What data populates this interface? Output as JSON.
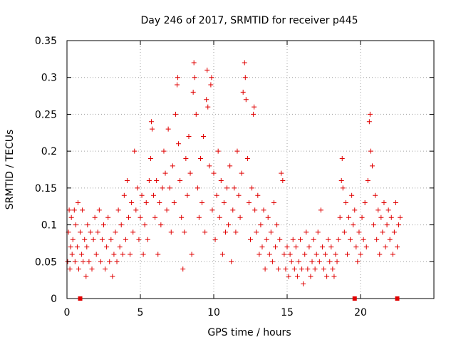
{
  "chart_data": {
    "type": "scatter",
    "title": "Day 246 of 2017, SRMTID for receiver p445",
    "xlabel": "GPS time / hours",
    "ylabel": "SRMTID / TECUs",
    "xlim": [
      0,
      25
    ],
    "ylim": [
      0,
      0.35
    ],
    "xticks": [
      0,
      5,
      10,
      15,
      20
    ],
    "xtick_labels": [
      "0",
      "5",
      "10",
      "15",
      "20"
    ],
    "yticks": [
      0,
      0.05,
      0.1,
      0.15,
      0.2,
      0.25,
      0.3,
      0.35
    ],
    "ytick_labels": [
      "0",
      "0.05",
      "0.1",
      "0.15",
      "0.2",
      "0.25",
      "0.3",
      "0.35"
    ],
    "grid": true,
    "marker": "+",
    "color": "#e00000",
    "axis_markers_x": [
      0.9,
      19.6,
      22.5
    ],
    "series": [
      {
        "name": "SRMTID",
        "points": [
          [
            0.05,
            0.05
          ],
          [
            0.1,
            0.09
          ],
          [
            0.15,
            0.12
          ],
          [
            0.2,
            0.04
          ],
          [
            0.25,
            0.07
          ],
          [
            0.3,
            0.11
          ],
          [
            0.35,
            0.06
          ],
          [
            0.4,
            0.08
          ],
          [
            0.5,
            0.12
          ],
          [
            0.55,
            0.05
          ],
          [
            0.6,
            0.1
          ],
          [
            0.7,
            0.07
          ],
          [
            0.75,
            0.13
          ],
          [
            0.8,
            0.04
          ],
          [
            0.9,
            0.09
          ],
          [
            1.0,
            0.06
          ],
          [
            1.05,
            0.12
          ],
          [
            1.1,
            0.05
          ],
          [
            1.2,
            0.08
          ],
          [
            1.3,
            0.03
          ],
          [
            1.35,
            0.07
          ],
          [
            1.4,
            0.1
          ],
          [
            1.5,
            0.05
          ],
          [
            1.6,
            0.09
          ],
          [
            1.7,
            0.04
          ],
          [
            1.8,
            0.08
          ],
          [
            1.9,
            0.11
          ],
          [
            2.0,
            0.06
          ],
          [
            2.1,
            0.09
          ],
          [
            2.2,
            0.12
          ],
          [
            2.3,
            0.05
          ],
          [
            2.4,
            0.08
          ],
          [
            2.5,
            0.1
          ],
          [
            2.6,
            0.04
          ],
          [
            2.7,
            0.07
          ],
          [
            2.8,
            0.11
          ],
          [
            2.9,
            0.05
          ],
          [
            3.0,
            0.08
          ],
          [
            3.1,
            0.03
          ],
          [
            3.2,
            0.06
          ],
          [
            3.3,
            0.09
          ],
          [
            3.4,
            0.05
          ],
          [
            3.5,
            0.12
          ],
          [
            3.6,
            0.07
          ],
          [
            3.7,
            0.1
          ],
          [
            3.8,
            0.06
          ],
          [
            3.9,
            0.14
          ],
          [
            4.0,
            0.08
          ],
          [
            4.1,
            0.16
          ],
          [
            4.2,
            0.11
          ],
          [
            4.3,
            0.06
          ],
          [
            4.4,
            0.13
          ],
          [
            4.5,
            0.09
          ],
          [
            4.6,
            0.2
          ],
          [
            4.7,
            0.12
          ],
          [
            4.8,
            0.15
          ],
          [
            4.9,
            0.08
          ],
          [
            5.0,
            0.11
          ],
          [
            5.1,
            0.14
          ],
          [
            5.2,
            0.06
          ],
          [
            5.3,
            0.1
          ],
          [
            5.4,
            0.13
          ],
          [
            5.5,
            0.08
          ],
          [
            5.6,
            0.16
          ],
          [
            5.7,
            0.19
          ],
          [
            5.75,
            0.24
          ],
          [
            5.8,
            0.23
          ],
          [
            5.9,
            0.14
          ],
          [
            6.0,
            0.11
          ],
          [
            6.1,
            0.16
          ],
          [
            6.2,
            0.06
          ],
          [
            6.3,
            0.13
          ],
          [
            6.4,
            0.1
          ],
          [
            6.5,
            0.15
          ],
          [
            6.6,
            0.2
          ],
          [
            6.7,
            0.17
          ],
          [
            6.8,
            0.12
          ],
          [
            6.9,
            0.23
          ],
          [
            7.0,
            0.15
          ],
          [
            7.1,
            0.09
          ],
          [
            7.2,
            0.18
          ],
          [
            7.3,
            0.13
          ],
          [
            7.4,
            0.25
          ],
          [
            7.5,
            0.29
          ],
          [
            7.55,
            0.3
          ],
          [
            7.6,
            0.21
          ],
          [
            7.7,
            0.16
          ],
          [
            7.8,
            0.11
          ],
          [
            7.9,
            0.04
          ],
          [
            8.0,
            0.09
          ],
          [
            8.1,
            0.19
          ],
          [
            8.2,
            0.14
          ],
          [
            8.3,
            0.22
          ],
          [
            8.4,
            0.17
          ],
          [
            8.5,
            0.06
          ],
          [
            8.6,
            0.28
          ],
          [
            8.65,
            0.32
          ],
          [
            8.7,
            0.3
          ],
          [
            8.8,
            0.25
          ],
          [
            8.9,
            0.15
          ],
          [
            9.0,
            0.11
          ],
          [
            9.1,
            0.19
          ],
          [
            9.2,
            0.13
          ],
          [
            9.3,
            0.22
          ],
          [
            9.4,
            0.09
          ],
          [
            9.5,
            0.27
          ],
          [
            9.55,
            0.31
          ],
          [
            9.6,
            0.26
          ],
          [
            9.7,
            0.18
          ],
          [
            9.8,
            0.29
          ],
          [
            9.85,
            0.3
          ],
          [
            9.9,
            0.12
          ],
          [
            10.0,
            0.17
          ],
          [
            10.1,
            0.08
          ],
          [
            10.2,
            0.14
          ],
          [
            10.3,
            0.2
          ],
          [
            10.4,
            0.11
          ],
          [
            10.5,
            0.16
          ],
          [
            10.6,
            0.06
          ],
          [
            10.7,
            0.13
          ],
          [
            10.8,
            0.09
          ],
          [
            10.9,
            0.15
          ],
          [
            11.0,
            0.1
          ],
          [
            11.1,
            0.18
          ],
          [
            11.2,
            0.05
          ],
          [
            11.3,
            0.12
          ],
          [
            11.4,
            0.15
          ],
          [
            11.5,
            0.09
          ],
          [
            11.6,
            0.2
          ],
          [
            11.7,
            0.14
          ],
          [
            11.8,
            0.11
          ],
          [
            11.9,
            0.17
          ],
          [
            12.0,
            0.28
          ],
          [
            12.1,
            0.32
          ],
          [
            12.15,
            0.3
          ],
          [
            12.2,
            0.27
          ],
          [
            12.3,
            0.19
          ],
          [
            12.4,
            0.13
          ],
          [
            12.5,
            0.08
          ],
          [
            12.6,
            0.15
          ],
          [
            12.7,
            0.25
          ],
          [
            12.75,
            0.26
          ],
          [
            12.8,
            0.12
          ],
          [
            12.9,
            0.09
          ],
          [
            13.0,
            0.14
          ],
          [
            13.1,
            0.06
          ],
          [
            13.2,
            0.1
          ],
          [
            13.3,
            0.07
          ],
          [
            13.4,
            0.12
          ],
          [
            13.5,
            0.04
          ],
          [
            13.6,
            0.08
          ],
          [
            13.7,
            0.11
          ],
          [
            13.8,
            0.06
          ],
          [
            13.9,
            0.09
          ],
          [
            14.0,
            0.05
          ],
          [
            14.1,
            0.13
          ],
          [
            14.2,
            0.07
          ],
          [
            14.3,
            0.1
          ],
          [
            14.4,
            0.04
          ],
          [
            14.5,
            0.08
          ],
          [
            14.6,
            0.17
          ],
          [
            14.7,
            0.16
          ],
          [
            14.8,
            0.06
          ],
          [
            14.9,
            0.04
          ],
          [
            15.0,
            0.07
          ],
          [
            15.1,
            0.03
          ],
          [
            15.2,
            0.06
          ],
          [
            15.3,
            0.05
          ],
          [
            15.4,
            0.08
          ],
          [
            15.5,
            0.04
          ],
          [
            15.6,
            0.07
          ],
          [
            15.7,
            0.03
          ],
          [
            15.8,
            0.05
          ],
          [
            15.9,
            0.08
          ],
          [
            16.0,
            0.04
          ],
          [
            16.1,
            0.02
          ],
          [
            16.2,
            0.06
          ],
          [
            16.3,
            0.09
          ],
          [
            16.4,
            0.04
          ],
          [
            16.5,
            0.07
          ],
          [
            16.6,
            0.03
          ],
          [
            16.7,
            0.05
          ],
          [
            16.8,
            0.08
          ],
          [
            16.9,
            0.04
          ],
          [
            17.0,
            0.06
          ],
          [
            17.1,
            0.09
          ],
          [
            17.2,
            0.05
          ],
          [
            17.3,
            0.12
          ],
          [
            17.4,
            0.07
          ],
          [
            17.5,
            0.04
          ],
          [
            17.6,
            0.06
          ],
          [
            17.7,
            0.03
          ],
          [
            17.8,
            0.08
          ],
          [
            17.9,
            0.05
          ],
          [
            18.0,
            0.07
          ],
          [
            18.1,
            0.04
          ],
          [
            18.2,
            0.03
          ],
          [
            18.3,
            0.06
          ],
          [
            18.4,
            0.05
          ],
          [
            18.5,
            0.08
          ],
          [
            18.6,
            0.11
          ],
          [
            18.7,
            0.16
          ],
          [
            18.75,
            0.19
          ],
          [
            18.8,
            0.15
          ],
          [
            18.9,
            0.09
          ],
          [
            19.0,
            0.13
          ],
          [
            19.1,
            0.06
          ],
          [
            19.2,
            0.11
          ],
          [
            19.3,
            0.08
          ],
          [
            19.4,
            0.14
          ],
          [
            19.5,
            0.1
          ],
          [
            19.6,
            0.12
          ],
          [
            19.7,
            0.07
          ],
          [
            19.8,
            0.05
          ],
          [
            19.9,
            0.09
          ],
          [
            20.0,
            0.06
          ],
          [
            20.1,
            0.11
          ],
          [
            20.2,
            0.08
          ],
          [
            20.3,
            0.13
          ],
          [
            20.4,
            0.07
          ],
          [
            20.5,
            0.16
          ],
          [
            20.6,
            0.24
          ],
          [
            20.65,
            0.25
          ],
          [
            20.7,
            0.2
          ],
          [
            20.8,
            0.18
          ],
          [
            20.9,
            0.1
          ],
          [
            21.0,
            0.14
          ],
          [
            21.1,
            0.08
          ],
          [
            21.2,
            0.12
          ],
          [
            21.3,
            0.06
          ],
          [
            21.4,
            0.11
          ],
          [
            21.5,
            0.09
          ],
          [
            21.6,
            0.13
          ],
          [
            21.7,
            0.07
          ],
          [
            21.8,
            0.1
          ],
          [
            21.9,
            0.12
          ],
          [
            22.0,
            0.08
          ],
          [
            22.1,
            0.11
          ],
          [
            22.2,
            0.06
          ],
          [
            22.3,
            0.09
          ],
          [
            22.4,
            0.13
          ],
          [
            22.5,
            0.07
          ],
          [
            22.6,
            0.1
          ],
          [
            22.7,
            0.11
          ]
        ]
      }
    ]
  }
}
